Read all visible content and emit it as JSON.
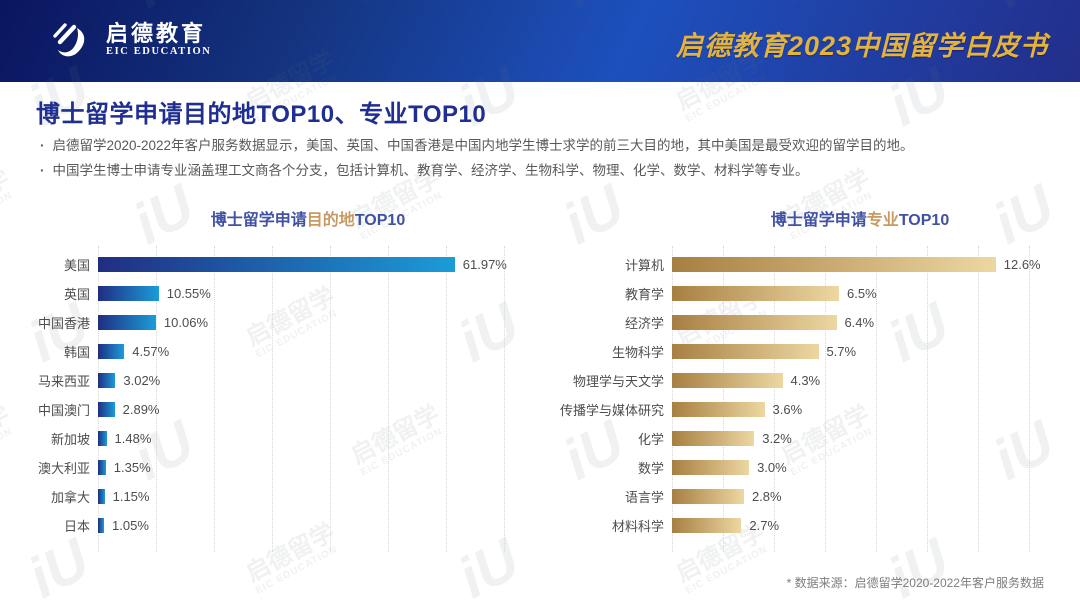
{
  "header": {
    "logo_cn": "启德教育",
    "logo_en": "EIC EDUCATION",
    "title": "启德教育2023中国留学白皮书"
  },
  "page": {
    "title": "博士留学申请目的地TOP10、专业TOP10",
    "bullets": [
      "启德留学2020-2022年客户服务数据显示，美国、英国、中国香港是中国内地学生博士求学的前三大目的地，其中美国是最受欢迎的留学目的地。",
      "中国学生博士申请专业涵盖理工文商各个分支，包括计算机、教育学、经济学、生物科学、物理、化学、数学、材料学等专业。"
    ],
    "footnote": "* 数据来源：启德留学2020-2022年客户服务数据"
  },
  "watermark": {
    "text_cn": "启德留学",
    "text_en": "EIC EDUCATION",
    "glyph": "iU"
  },
  "colors": {
    "header_gradient_start": "#0b1560",
    "header_gradient_end": "#232e8a",
    "header_title_gold": "#e3b23f",
    "page_title_blue": "#1f2e91",
    "chart_title_blue": "#3f51a3",
    "chart_title_gold": "#c89a62",
    "blue_bar_start": "#202e82",
    "blue_bar_end": "#1b9cd8",
    "gold_bar_start": "#a87f42",
    "gold_bar_end": "#ecd7a2",
    "text_gray": "#595959"
  },
  "chart_data": [
    {
      "type": "bar",
      "orientation": "horizontal",
      "title": {
        "prefix": "博士留学申请",
        "highlight": "目的地",
        "suffix": "TOP10"
      },
      "categories": [
        "美国",
        "英国",
        "中国香港",
        "韩国",
        "马来西亚",
        "中国澳门",
        "新加坡",
        "澳大利亚",
        "加拿大",
        "日本"
      ],
      "values": [
        61.97,
        10.55,
        10.06,
        4.57,
        3.02,
        2.89,
        1.48,
        1.35,
        1.15,
        1.05
      ],
      "labels": [
        "61.97%",
        "10.55%",
        "10.06%",
        "4.57%",
        "3.02%",
        "2.89%",
        "1.48%",
        "1.35%",
        "1.15%",
        "1.05%"
      ],
      "xlim": [
        0,
        73.3
      ],
      "grid": true,
      "legend": "none",
      "bar_gradient": [
        "#202e82",
        "#1b9cd8"
      ]
    },
    {
      "type": "bar",
      "orientation": "horizontal",
      "title": {
        "prefix": "博士留学申请",
        "highlight": "专业",
        "suffix": "TOP10"
      },
      "categories": [
        "计算机",
        "教育学",
        "经济学",
        "生物科学",
        "物理学与天文学",
        "传播学与媒体研究",
        "化学",
        "数学",
        "语言学",
        "材料科学"
      ],
      "values": [
        12.6,
        6.5,
        6.4,
        5.7,
        4.3,
        3.6,
        3.2,
        3.0,
        2.8,
        2.7
      ],
      "labels": [
        "12.6%",
        "6.5%",
        "6.4%",
        "5.7%",
        "4.3%",
        "3.6%",
        "3.2%",
        "3.0%",
        "2.8%",
        "2.7%"
      ],
      "xlim": [
        0,
        15.1
      ],
      "grid": true,
      "legend": "none",
      "bar_gradient": [
        "#a87f42",
        "#ecd7a2"
      ]
    }
  ]
}
